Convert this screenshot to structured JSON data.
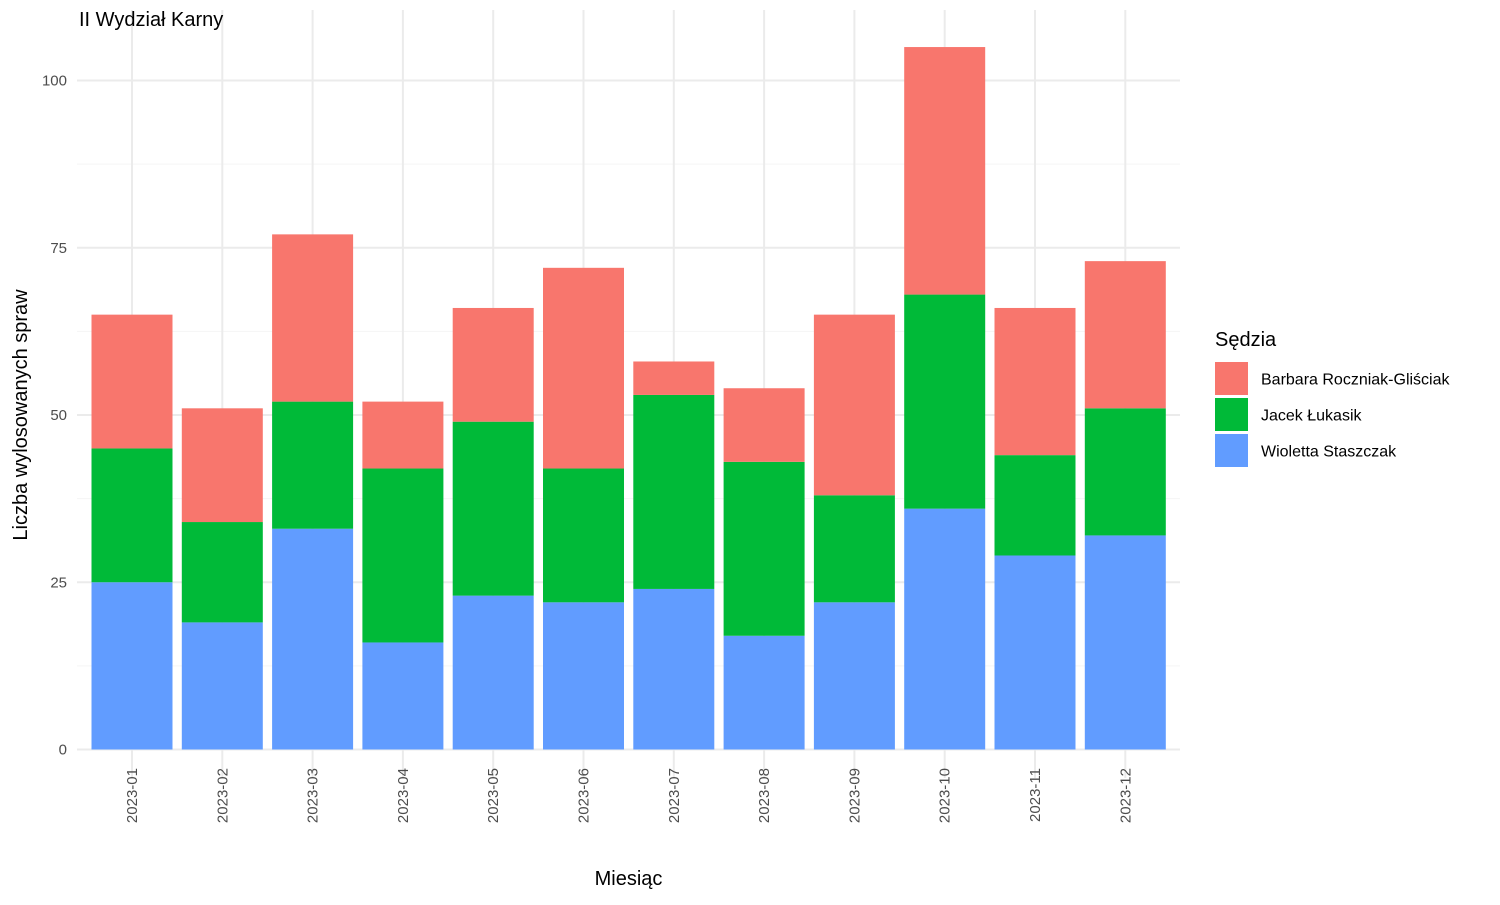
{
  "chart_data": {
    "type": "bar",
    "stacked": true,
    "title": "II Wydział Karny",
    "xlabel": "Miesiąc",
    "ylabel": "Liczba wylosowanych spraw",
    "categories": [
      "2023-01",
      "2023-02",
      "2023-03",
      "2023-04",
      "2023-05",
      "2023-06",
      "2023-07",
      "2023-08",
      "2023-09",
      "2023-10",
      "2023-11",
      "2023-12"
    ],
    "ylim": [
      0,
      107
    ],
    "yticks": [
      0,
      25,
      50,
      75,
      100
    ],
    "grid": true,
    "legend": {
      "title": "Sędzia",
      "position": "right"
    },
    "series": [
      {
        "name": "Wioletta Staszczak",
        "color": "#619CFF",
        "values": [
          25,
          19,
          33,
          16,
          23,
          22,
          24,
          17,
          22,
          36,
          29,
          32
        ]
      },
      {
        "name": "Jacek Łukasik",
        "color": "#00BA38",
        "values": [
          20,
          15,
          19,
          26,
          26,
          20,
          29,
          26,
          16,
          32,
          15,
          19
        ]
      },
      {
        "name": "Barbara Roczniak-Gliściak",
        "color": "#F8766D",
        "values": [
          20,
          17,
          25,
          10,
          17,
          30,
          5,
          11,
          27,
          37,
          22,
          22
        ]
      }
    ],
    "legend_order": [
      "Barbara Roczniak-Gliściak",
      "Jacek Łukasik",
      "Wioletta Staszczak"
    ]
  }
}
